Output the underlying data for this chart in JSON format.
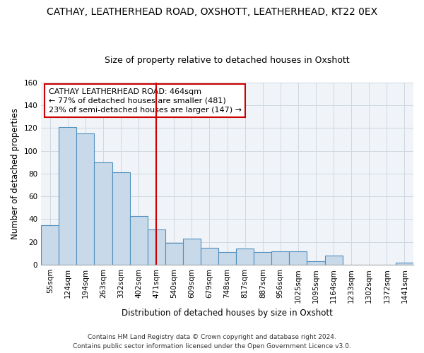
{
  "title": "CATHAY, LEATHERHEAD ROAD, OXSHOTT, LEATHERHEAD, KT22 0EX",
  "subtitle": "Size of property relative to detached houses in Oxshott",
  "xlabel": "Distribution of detached houses by size in Oxshott",
  "ylabel": "Number of detached properties",
  "bar_labels": [
    "55sqm",
    "124sqm",
    "194sqm",
    "263sqm",
    "332sqm",
    "402sqm",
    "471sqm",
    "540sqm",
    "609sqm",
    "679sqm",
    "748sqm",
    "817sqm",
    "887sqm",
    "956sqm",
    "1025sqm",
    "1095sqm",
    "1164sqm",
    "1233sqm",
    "1302sqm",
    "1372sqm",
    "1441sqm"
  ],
  "bar_values": [
    35,
    121,
    115,
    90,
    81,
    43,
    31,
    19,
    23,
    15,
    11,
    14,
    11,
    12,
    12,
    3,
    8,
    0,
    0,
    0,
    2
  ],
  "bar_color": "#c8daea",
  "bar_edge_color": "#4f8fbf",
  "vline_x_index": 6,
  "vline_color": "#cc0000",
  "annotation_line1": "CATHAY LEATHERHEAD ROAD: 464sqm",
  "annotation_line2": "← 77% of detached houses are smaller (481)",
  "annotation_line3": "23% of semi-detached houses are larger (147) →",
  "annotation_box_color": "#ffffff",
  "annotation_box_edge_color": "#cc0000",
  "ylim": [
    0,
    160
  ],
  "yticks": [
    0,
    20,
    40,
    60,
    80,
    100,
    120,
    140,
    160
  ],
  "footer_line1": "Contains HM Land Registry data © Crown copyright and database right 2024.",
  "footer_line2": "Contains public sector information licensed under the Open Government Licence v3.0.",
  "title_fontsize": 10,
  "subtitle_fontsize": 9,
  "axis_label_fontsize": 8.5,
  "tick_fontsize": 7.5,
  "annotation_fontsize": 8,
  "footer_fontsize": 6.5,
  "grid_color": "#d0d8e0"
}
